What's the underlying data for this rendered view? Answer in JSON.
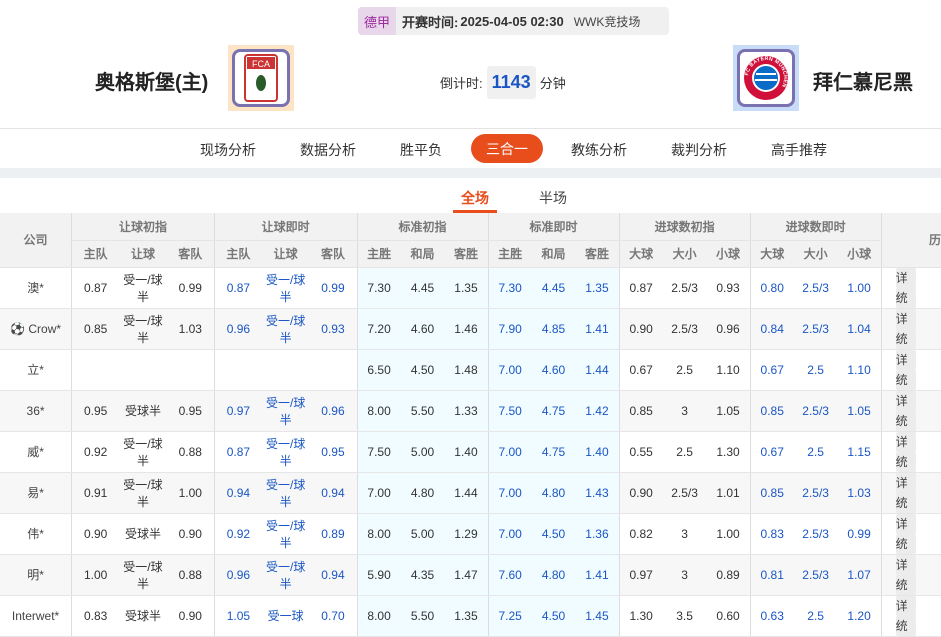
{
  "match": {
    "league": "德甲",
    "kickoff_label": "开赛时间:",
    "kickoff": "2025-04-05 02:30",
    "venue": "WWK竞技场",
    "home": "奥格斯堡(主)",
    "away": "拜仁慕尼黑",
    "home_logo_text": "FCA",
    "away_logo_text": "FC BAYERN MÜNCHEN",
    "countdown_label": "倒计时:",
    "countdown_value": "1143",
    "countdown_unit": "分钟"
  },
  "nav": {
    "items": [
      "现场分析",
      "数据分析",
      "胜平负",
      "三合一",
      "教练分析",
      "裁判分析",
      "高手推荐"
    ],
    "active": 3
  },
  "sub_tabs": {
    "items": [
      "全场",
      "半场"
    ],
    "active": 0
  },
  "table": {
    "group_headers": [
      "公司",
      "让球初指",
      "让球即时",
      "标准初指",
      "标准即时",
      "进球数初指",
      "进球数即时",
      "历"
    ],
    "sub_headers": [
      "主队",
      "让球",
      "客队",
      "主队",
      "让球",
      "客队",
      "主胜",
      "和局",
      "客胜",
      "主胜",
      "和局",
      "客胜",
      "大球",
      "大小",
      "小球",
      "大球",
      "大小",
      "小球"
    ],
    "action_labels": [
      "详",
      "统"
    ],
    "rows": [
      [
        "澳*",
        "0.87",
        "受一/球半",
        "0.99",
        "0.87",
        "受一/球半",
        "0.99",
        "7.30",
        "4.45",
        "1.35",
        "7.30",
        "4.45",
        "1.35",
        "0.87",
        "2.5/3",
        "0.93",
        "0.80",
        "2.5/3",
        "1.00"
      ],
      [
        "Crow*",
        "0.85",
        "受一/球半",
        "1.03",
        "0.96",
        "受一/球半",
        "0.93",
        "7.20",
        "4.60",
        "1.46",
        "7.90",
        "4.85",
        "1.41",
        "0.90",
        "2.5/3",
        "0.96",
        "0.84",
        "2.5/3",
        "1.04"
      ],
      [
        "立*",
        "",
        "",
        "",
        "",
        "",
        "",
        "6.50",
        "4.50",
        "1.48",
        "7.00",
        "4.60",
        "1.44",
        "0.67",
        "2.5",
        "1.10",
        "0.67",
        "2.5",
        "1.10"
      ],
      [
        "36*",
        "0.95",
        "受球半",
        "0.95",
        "0.97",
        "受一/球半",
        "0.96",
        "8.00",
        "5.50",
        "1.33",
        "7.50",
        "4.75",
        "1.42",
        "0.85",
        "3",
        "1.05",
        "0.85",
        "2.5/3",
        "1.05"
      ],
      [
        "威*",
        "0.92",
        "受一/球半",
        "0.88",
        "0.87",
        "受一/球半",
        "0.95",
        "7.50",
        "5.00",
        "1.40",
        "7.00",
        "4.75",
        "1.40",
        "0.55",
        "2.5",
        "1.30",
        "0.67",
        "2.5",
        "1.15"
      ],
      [
        "易*",
        "0.91",
        "受一/球半",
        "1.00",
        "0.94",
        "受一/球半",
        "0.94",
        "7.00",
        "4.80",
        "1.44",
        "7.00",
        "4.80",
        "1.43",
        "0.90",
        "2.5/3",
        "1.01",
        "0.85",
        "2.5/3",
        "1.03"
      ],
      [
        "伟*",
        "0.90",
        "受球半",
        "0.90",
        "0.92",
        "受一/球半",
        "0.89",
        "8.00",
        "5.00",
        "1.29",
        "7.00",
        "4.50",
        "1.36",
        "0.82",
        "3",
        "1.00",
        "0.83",
        "2.5/3",
        "0.99"
      ],
      [
        "明*",
        "1.00",
        "受一/球半",
        "0.88",
        "0.96",
        "受一/球半",
        "0.94",
        "5.90",
        "4.35",
        "1.47",
        "7.60",
        "4.80",
        "1.41",
        "0.97",
        "3",
        "0.89",
        "0.81",
        "2.5/3",
        "1.07"
      ],
      [
        "Interwet*",
        "0.83",
        "受球半",
        "0.90",
        "1.05",
        "受一球",
        "0.70",
        "8.00",
        "5.50",
        "1.35",
        "7.25",
        "4.50",
        "1.45",
        "1.30",
        "3.5",
        "0.60",
        "0.63",
        "2.5",
        "1.20"
      ]
    ]
  },
  "colors": {
    "accent": "#e84d1c",
    "blue": "#1a56c4",
    "league": "#9b2a9c"
  }
}
